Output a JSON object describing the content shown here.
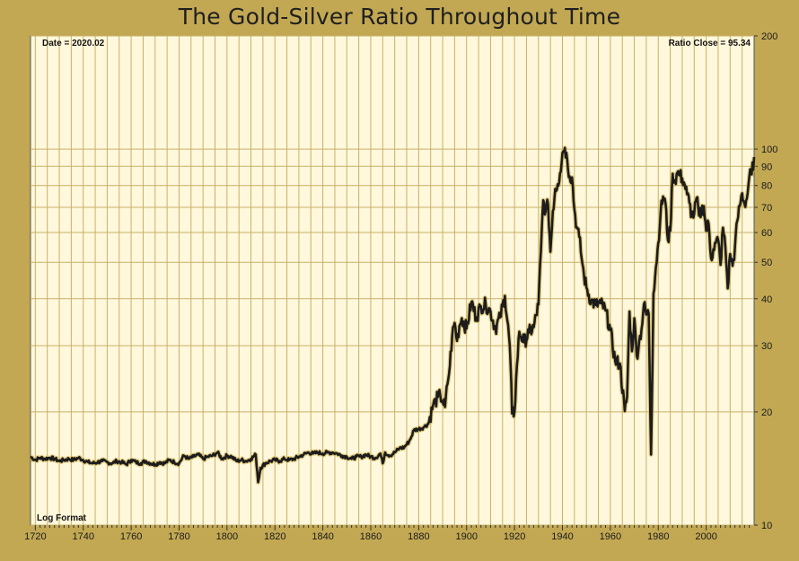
{
  "chart_data": {
    "type": "line",
    "title": "The Gold-Silver Ratio Throughout Time",
    "date_label": "Date = 2020.02",
    "close_label": "Ratio Close = 95.34",
    "scale_label": "Log Format",
    "y_scale": "log",
    "xlim": [
      1718,
      2020
    ],
    "ylim": [
      10,
      200
    ],
    "x_ticks": [
      1720,
      1740,
      1760,
      1780,
      1800,
      1820,
      1840,
      1860,
      1880,
      1900,
      1920,
      1940,
      1960,
      1980,
      2000
    ],
    "y_ticks": [
      10,
      20,
      30,
      40,
      50,
      60,
      70,
      80,
      90,
      100,
      200
    ],
    "grid": true,
    "colors": {
      "background": "#c2a853",
      "plot": "#fff8dc",
      "grid": "#c9b068",
      "line": "#1c1c1c"
    },
    "series": [
      {
        "x": [
          1718,
          1720,
          1722,
          1724,
          1726,
          1728,
          1730,
          1732,
          1734,
          1736,
          1738,
          1740,
          1742,
          1744,
          1746,
          1748,
          1750,
          1752,
          1754,
          1756,
          1758,
          1760,
          1762,
          1764,
          1766,
          1768,
          1770,
          1772,
          1774,
          1776,
          1778,
          1780,
          1782,
          1784,
          1786,
          1788,
          1790,
          1792,
          1794,
          1796,
          1798,
          1800,
          1802,
          1804,
          1806,
          1808,
          1810,
          1812,
          1813,
          1814,
          1816,
          1818,
          1820,
          1822,
          1824,
          1826,
          1828,
          1830,
          1832,
          1834,
          1836,
          1838,
          1840,
          1842,
          1844,
          1846,
          1848,
          1850,
          1852,
          1854,
          1856,
          1858,
          1860,
          1862,
          1864,
          1865,
          1866,
          1868,
          1870,
          1872,
          1874,
          1876,
          1877,
          1878,
          1880,
          1882,
          1884,
          1886,
          1887,
          1888,
          1889,
          1890,
          1891,
          1892,
          1893,
          1894,
          1895,
          1896,
          1897,
          1898,
          1900,
          1902,
          1904,
          1906,
          1908,
          1910,
          1912,
          1914,
          1916,
          1918,
          1919,
          1920,
          1921,
          1922,
          1924,
          1926,
          1928,
          1930,
          1931,
          1932,
          1933,
          1934,
          1935,
          1936,
          1937,
          1938,
          1939,
          1940,
          1941,
          1942,
          1943,
          1944,
          1945,
          1946,
          1947,
          1948,
          1949,
          1950,
          1952,
          1954,
          1956,
          1958,
          1960,
          1962,
          1964,
          1966,
          1967,
          1968,
          1969,
          1970,
          1971,
          1972,
          1973,
          1974,
          1975,
          1976,
          1977,
          1978,
          1979,
          1980,
          1981,
          1982,
          1983,
          1984,
          1985,
          1986,
          1987,
          1988,
          1989,
          1990,
          1991,
          1992,
          1993,
          1994,
          1995,
          1996,
          1997,
          1998,
          1999,
          2000,
          2001,
          2002,
          2003,
          2004,
          2005,
          2006,
          2007,
          2008,
          2009,
          2010,
          2011,
          2012,
          2013,
          2014,
          2015,
          2016,
          2017,
          2018,
          2019,
          2020
        ],
        "y": [
          15.2,
          14.9,
          15.1,
          15.0,
          15.1,
          15.0,
          14.8,
          14.9,
          15.0,
          14.9,
          15.1,
          14.9,
          14.7,
          14.6,
          14.7,
          14.8,
          14.7,
          14.6,
          14.8,
          14.7,
          14.5,
          14.9,
          14.7,
          14.6,
          14.8,
          14.6,
          14.5,
          14.7,
          14.6,
          14.9,
          14.7,
          14.6,
          15.3,
          15.0,
          15.2,
          15.4,
          15.0,
          15.2,
          15.3,
          15.6,
          15.0,
          15.3,
          15.2,
          14.8,
          14.9,
          14.8,
          15.0,
          15.4,
          13.0,
          14.2,
          14.6,
          14.8,
          14.9,
          14.8,
          15.0,
          14.9,
          15.0,
          15.2,
          15.4,
          15.6,
          15.5,
          15.6,
          15.5,
          15.6,
          15.6,
          15.5,
          15.3,
          15.2,
          15.0,
          15.2,
          15.2,
          15.4,
          15.2,
          15.1,
          15.5,
          14.6,
          15.6,
          15.3,
          15.6,
          16.0,
          16.1,
          16.7,
          17.2,
          17.9,
          18.0,
          18.2,
          18.6,
          20.8,
          21.3,
          21.9,
          22.1,
          21.4,
          20.6,
          23.7,
          26.5,
          31.9,
          34.5,
          30.9,
          33.8,
          35.5,
          33.3,
          39.2,
          35.7,
          38.2,
          38.6,
          37.0,
          33.3,
          35.7,
          40.7,
          30.1,
          19.8,
          20.0,
          26.6,
          32.7,
          30.6,
          32.5,
          33.6,
          38.6,
          53.3,
          73.1,
          68.3,
          71.3,
          53.3,
          68.4,
          78.4,
          80.6,
          86.2,
          97.7,
          100.8,
          93.9,
          84.6,
          84.1,
          69.2,
          62.0,
          58.4,
          51.4,
          46.2,
          42.8,
          39.5,
          38.5,
          38.9,
          37.2,
          33.0,
          27.3,
          26.9,
          20.1,
          21.9,
          37.0,
          29.0,
          35.5,
          28.2,
          30.7,
          33.2,
          38.6,
          36.3,
          36.5,
          15.4,
          41.3,
          48.6,
          56.2,
          67.9,
          74.8,
          71.9,
          57.4,
          60.6,
          86.0,
          82.1,
          86.8,
          85.2,
          83.6,
          80.5,
          75.8,
          72.0,
          66.6,
          67.3,
          74.1,
          66.5,
          68.5,
          70.5,
          60.6,
          63.5,
          51.3,
          54.2,
          56.3,
          57.3,
          49.2,
          61.8,
          54.8,
          42.6,
          52.6,
          48.9,
          54.6,
          64.5,
          70.6,
          76.3,
          71.5,
          73.9,
          84.7,
          85.6,
          95.3
        ]
      }
    ]
  }
}
